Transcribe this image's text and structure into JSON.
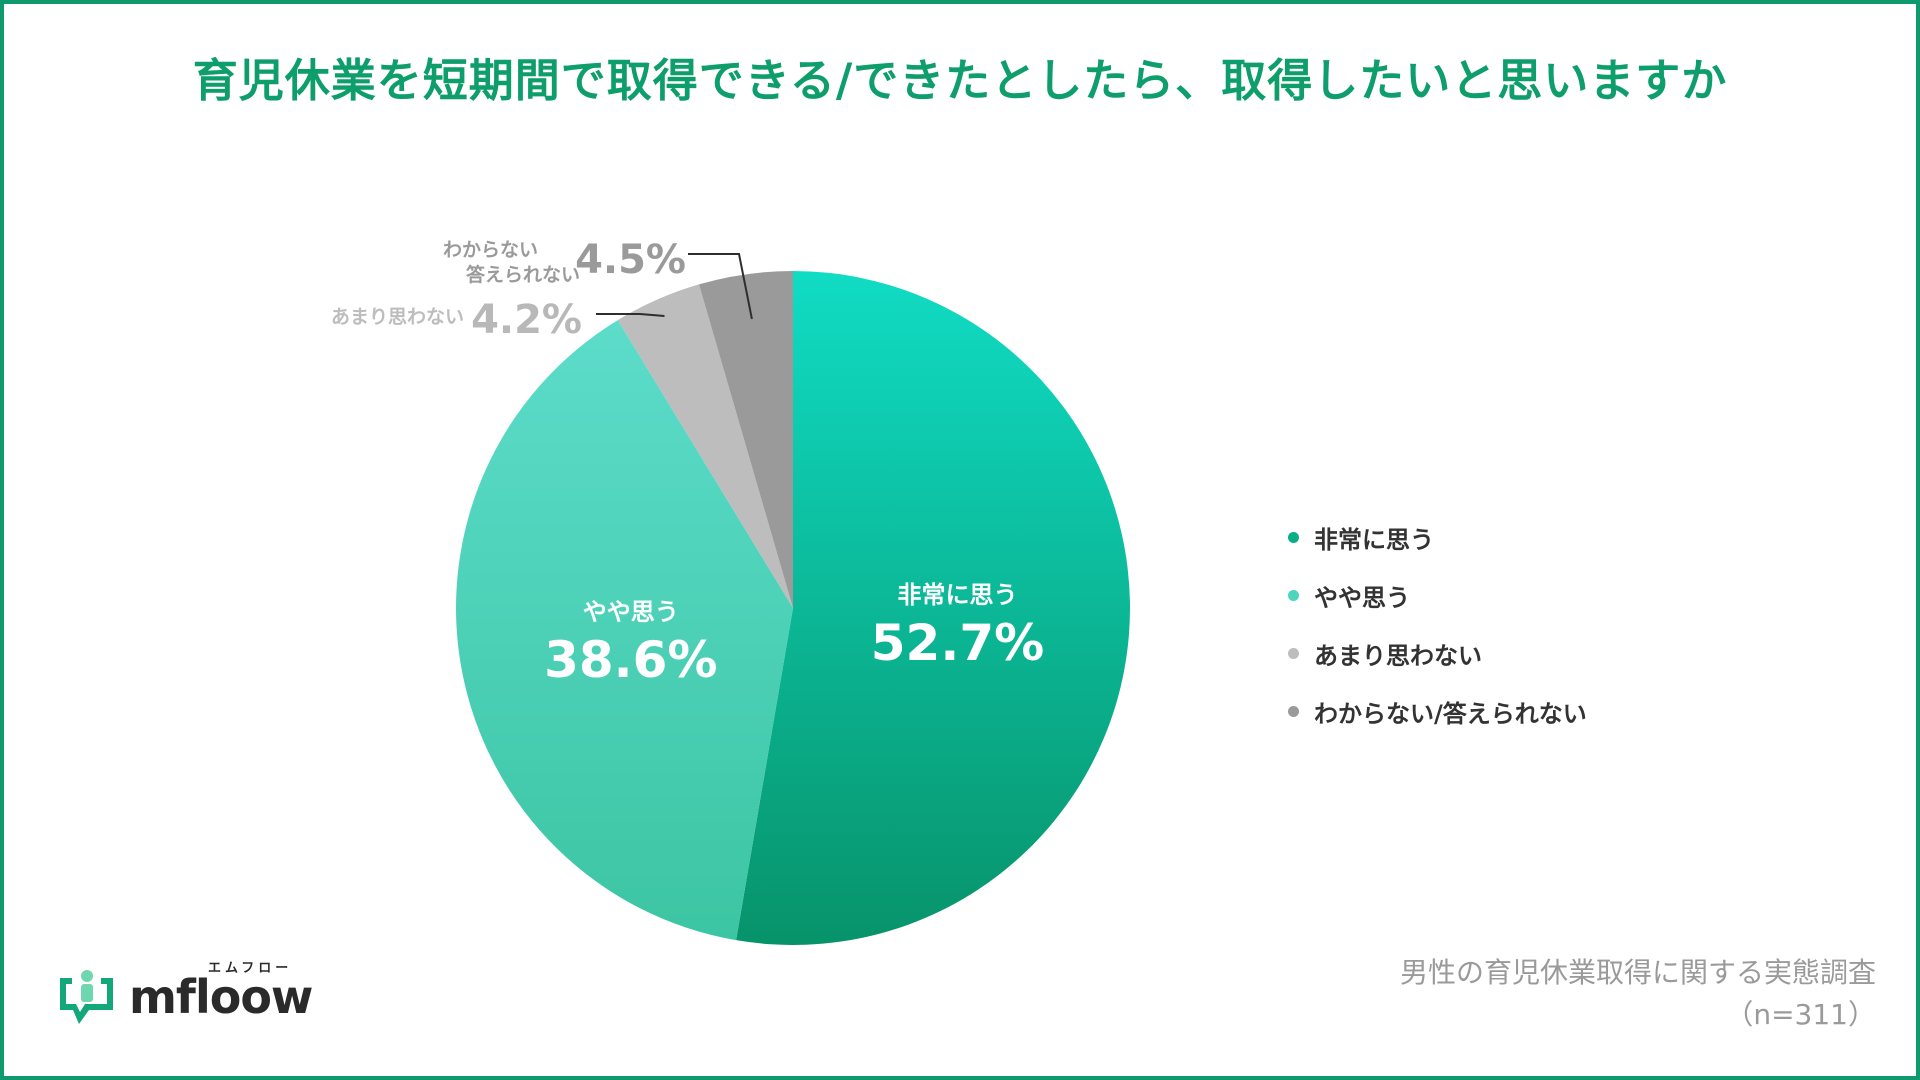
{
  "title": "育児休業を短期間で取得できる/できたとしたら、取得したいと思いますか",
  "chart_data": {
    "type": "pie",
    "title": "育児休業を短期間で取得できる/できたとしたら、取得したいと思いますか",
    "start": "12 o'clock, clockwise",
    "slices": [
      {
        "label": "非常に思う",
        "value": 52.7,
        "value_text": "52.7%",
        "color": "#0aae86",
        "label_inside": "非常に思う"
      },
      {
        "label": "やや思う",
        "value": 38.6,
        "value_text": "38.6%",
        "color": "#4dd5bd",
        "label_inside": "やや思う"
      },
      {
        "label": "あまり思わない",
        "value": 4.2,
        "value_text": "4.2%",
        "color": "#bdbdbd",
        "callout_lines": [
          "あまり思わない"
        ]
      },
      {
        "label": "わからない/答えられない",
        "value": 4.5,
        "value_text": "4.5%",
        "color": "#9a9a9a",
        "callout_lines": [
          "わからない",
          "答えられない"
        ]
      }
    ],
    "legend_position": "right",
    "legend": [
      {
        "label": "非常に思う",
        "color": "#0aae86"
      },
      {
        "label": "やや思う",
        "color": "#4dd5bd"
      },
      {
        "label": "あまり思わない",
        "color": "#bdbdbd"
      },
      {
        "label": "わからない/答えられない",
        "color": "#9a9a9a"
      }
    ]
  },
  "source": {
    "line1": "男性の育児休業取得に関する実態調査",
    "line2": "（n=311）"
  },
  "logo": {
    "text": "mfloow",
    "ruby": "エムフロー",
    "icon": "speech-person-icon"
  },
  "colors": {
    "accent": "#0d9e6c",
    "frame": "#0f9a6d"
  }
}
